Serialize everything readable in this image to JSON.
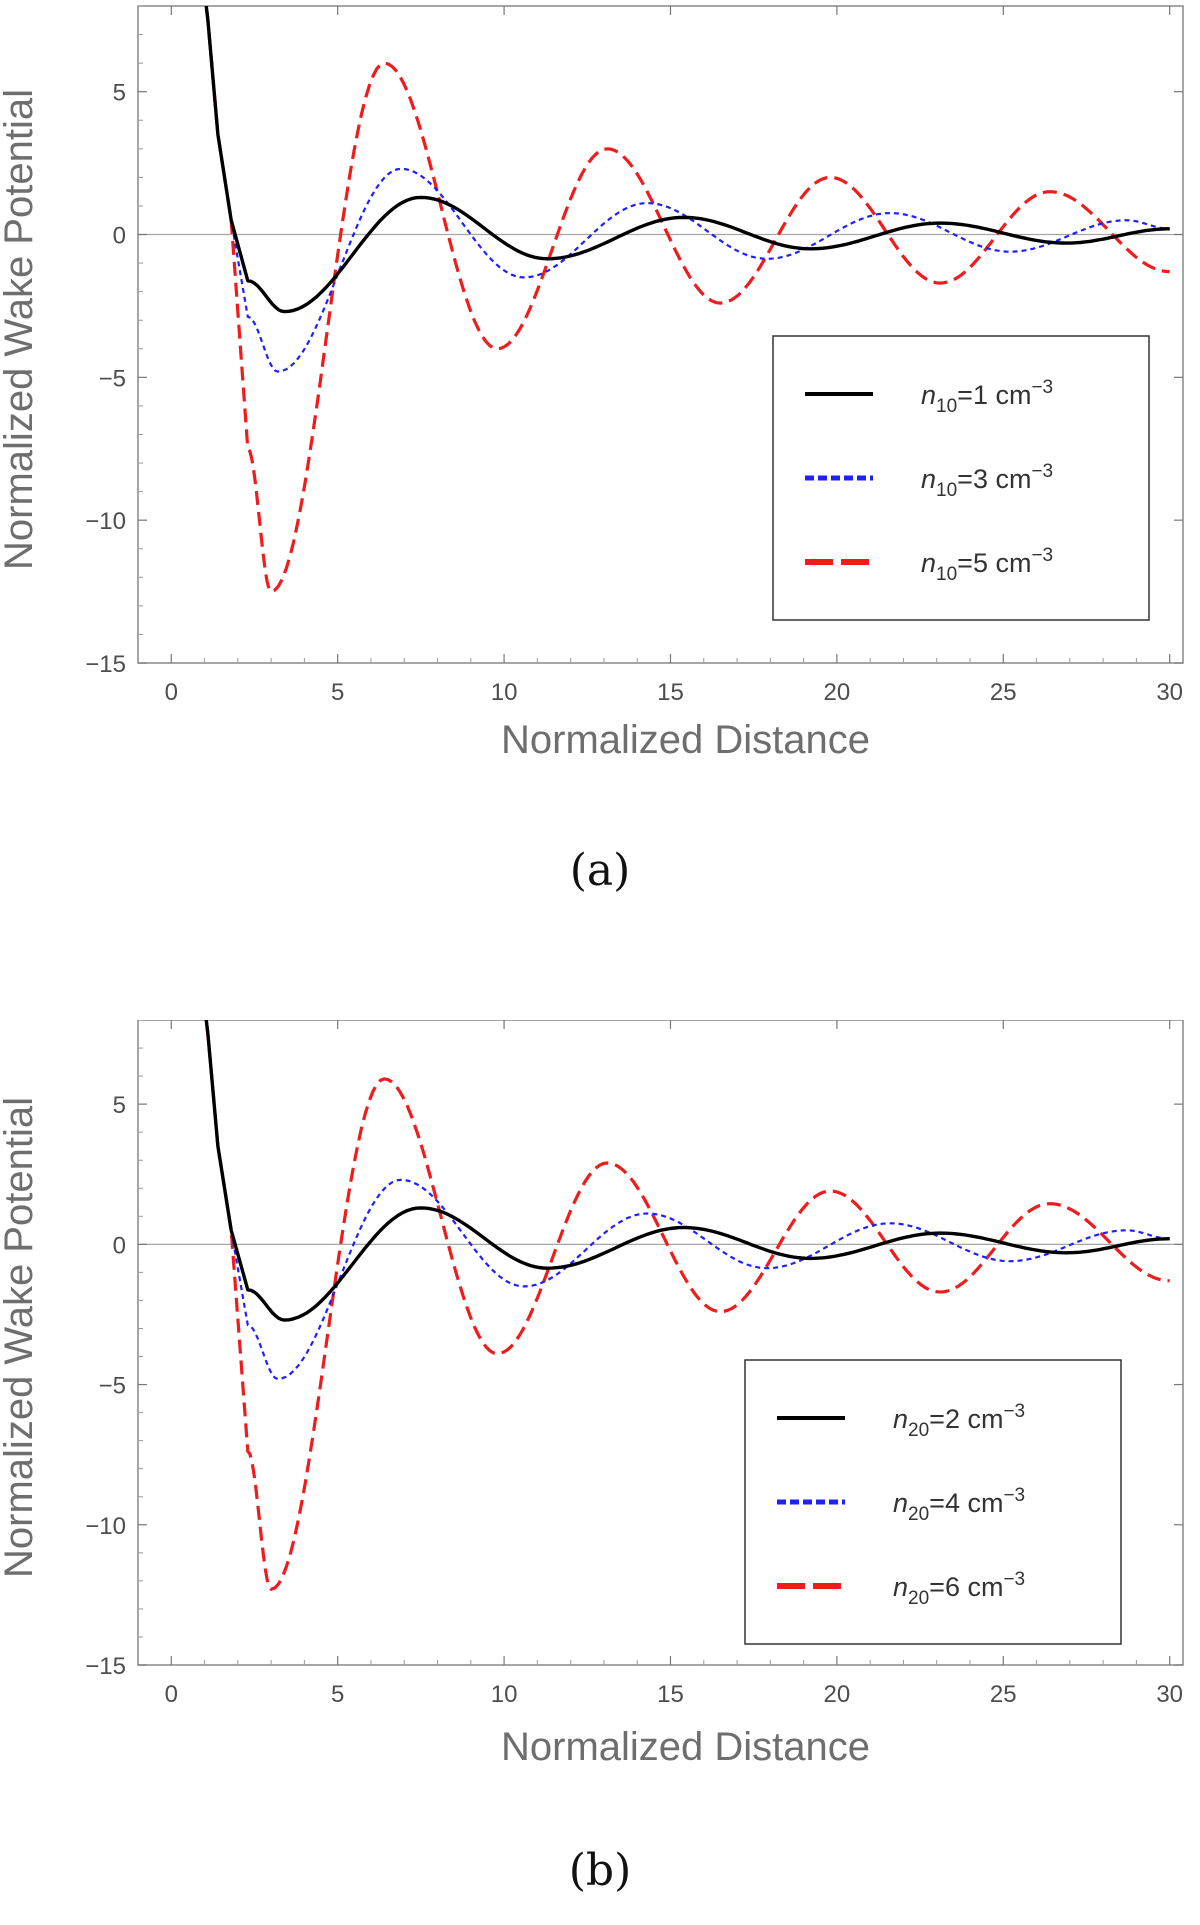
{
  "chart_data": [
    {
      "panel": "a",
      "type": "line",
      "caption": "(a)",
      "xlabel": "Normalized Distance",
      "ylabel": "Normalized  Wake Potential",
      "xlim": [
        -1.0,
        30.4
      ],
      "ylim": [
        -15,
        8
      ],
      "xticks": [
        "0",
        "5",
        "10",
        "15",
        "20",
        "25",
        "30"
      ],
      "yticks": [
        "5",
        "0",
        "−5",
        "−10",
        "−15"
      ],
      "legend_position": "center-right",
      "series": [
        {
          "name": "n10=1 cm-3",
          "label_base": "n",
          "label_sub": "10",
          "label_mid": "=1 cm",
          "label_sup": "−3",
          "color": "#000000",
          "style": "solid",
          "peaks": [
            [
              3.4,
              -2.7
            ],
            [
              7.5,
              1.3
            ],
            [
              11.3,
              -0.85
            ],
            [
              15.4,
              0.6
            ],
            [
              19.2,
              -0.5
            ],
            [
              23.1,
              0.4
            ],
            [
              26.9,
              -0.3
            ],
            [
              30.0,
              0.2
            ]
          ]
        },
        {
          "name": "n10=3 cm-3",
          "label_base": "n",
          "label_sub": "10",
          "label_mid": "=3 cm",
          "label_sup": "−3",
          "color": "#1f1fff",
          "style": "dotted",
          "peaks": [
            [
              3.2,
              -4.8
            ],
            [
              6.9,
              2.3
            ],
            [
              10.6,
              -1.5
            ],
            [
              14.3,
              1.1
            ],
            [
              17.9,
              -0.85
            ],
            [
              21.6,
              0.75
            ],
            [
              25.2,
              -0.6
            ],
            [
              28.7,
              0.5
            ],
            [
              30.0,
              0.2
            ]
          ]
        },
        {
          "name": "n10=5 cm-3",
          "label_base": "n",
          "label_sub": "10",
          "label_mid": "=5 cm",
          "label_sup": "−3",
          "color": "#ee1c1c",
          "style": "dashed",
          "peaks": [
            [
              3.0,
              -12.5
            ],
            [
              6.4,
              6.0
            ],
            [
              9.8,
              -4.0
            ],
            [
              13.1,
              3.0
            ],
            [
              16.5,
              -2.4
            ],
            [
              19.8,
              2.0
            ],
            [
              23.1,
              -1.7
            ],
            [
              26.4,
              1.5
            ],
            [
              30.0,
              -1.3
            ]
          ]
        }
      ]
    },
    {
      "panel": "b",
      "type": "line",
      "caption": "(b)",
      "xlabel": "Normalized Distance",
      "ylabel": "Normalized  Wake Potential",
      "xlim": [
        -1.0,
        30.4
      ],
      "ylim": [
        -15,
        8
      ],
      "xticks": [
        "0",
        "5",
        "10",
        "15",
        "20",
        "25",
        "30"
      ],
      "yticks": [
        "5",
        "0",
        "−5",
        "−10",
        "−15"
      ],
      "legend_position": "center-right",
      "series": [
        {
          "name": "n20=2 cm-3",
          "label_base": "n",
          "label_sub": "20",
          "label_mid": "=2 cm",
          "label_sup": "−3",
          "color": "#000000",
          "style": "solid",
          "peaks": [
            [
              3.4,
              -2.7
            ],
            [
              7.5,
              1.3
            ],
            [
              11.3,
              -0.85
            ],
            [
              15.4,
              0.6
            ],
            [
              19.2,
              -0.5
            ],
            [
              23.1,
              0.4
            ],
            [
              26.9,
              -0.3
            ],
            [
              30.0,
              0.2
            ]
          ]
        },
        {
          "name": "n20=4 cm-3",
          "label_base": "n",
          "label_sub": "20",
          "label_mid": "=4 cm",
          "label_sup": "−3",
          "color": "#1f1fff",
          "style": "dotted",
          "peaks": [
            [
              3.2,
              -4.8
            ],
            [
              6.9,
              2.3
            ],
            [
              10.6,
              -1.5
            ],
            [
              14.3,
              1.1
            ],
            [
              17.9,
              -0.85
            ],
            [
              21.6,
              0.75
            ],
            [
              25.2,
              -0.6
            ],
            [
              28.7,
              0.5
            ],
            [
              30.0,
              0.2
            ]
          ]
        },
        {
          "name": "n20=6 cm-3",
          "label_base": "n",
          "label_sub": "20",
          "label_mid": "=6 cm",
          "label_sup": "−3",
          "color": "#ee1c1c",
          "style": "dashed",
          "peaks": [
            [
              3.0,
              -12.3
            ],
            [
              6.4,
              5.9
            ],
            [
              9.8,
              -3.9
            ],
            [
              13.1,
              2.9
            ],
            [
              16.5,
              -2.4
            ],
            [
              19.8,
              1.9
            ],
            [
              23.1,
              -1.7
            ],
            [
              26.4,
              1.45
            ],
            [
              30.0,
              -1.3
            ]
          ]
        }
      ]
    }
  ]
}
